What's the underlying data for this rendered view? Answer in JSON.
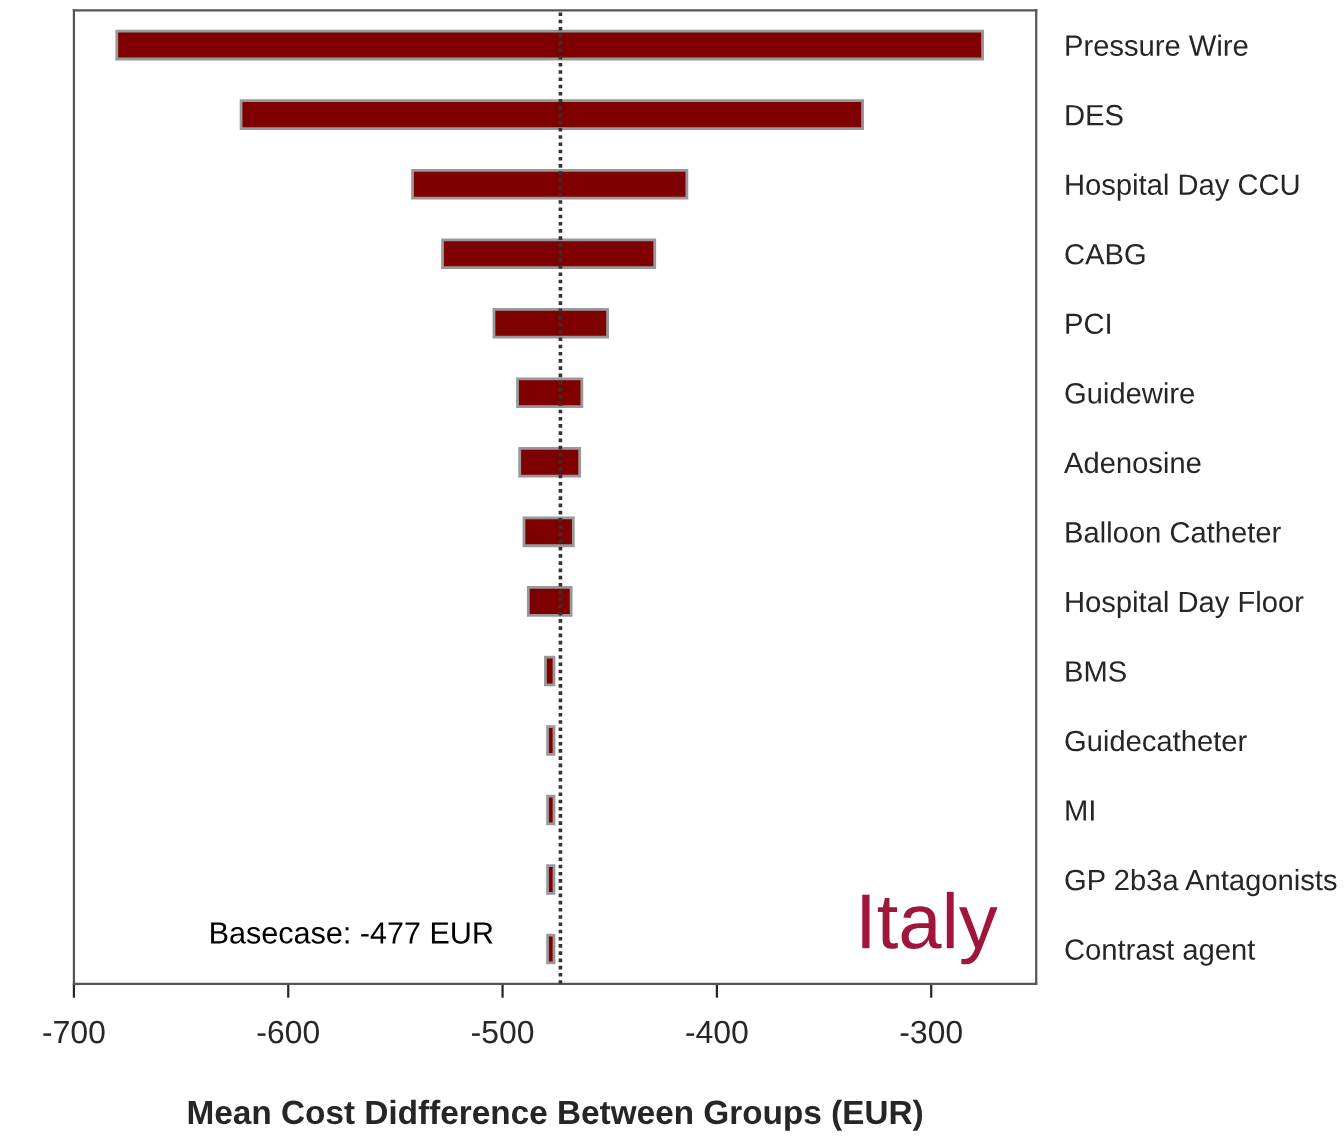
{
  "chart_data": {
    "type": "bar",
    "orientation": "horizontal",
    "xlabel": "Mean Cost Didfference Between Groups (EUR)",
    "categories": [
      "Pressure Wire",
      "DES",
      "Hospital Day CCU",
      "CABG",
      "PCI",
      "Guidewire",
      "Adenosine",
      "Balloon Catheter",
      "Hospital Day Floor",
      "BMS",
      "Guidecatheter",
      "MI",
      "GP 2b3a Antagonists",
      "Contrast agent"
    ],
    "base": [
      -680,
      -622,
      -542,
      -528,
      -504,
      -493,
      -492,
      -490,
      -488,
      -480,
      -479,
      -479,
      -479,
      -479
    ],
    "values": [
      404,
      290,
      128,
      99,
      53,
      30,
      28,
      23,
      20,
      4,
      3,
      3,
      3,
      3
    ],
    "color": "#7f0000",
    "xlim": [
      -700,
      -251
    ],
    "xticks": [
      -700,
      -600,
      -500,
      -400,
      -300
    ],
    "ref_lines": [
      {
        "axis": "x",
        "value": -473,
        "line_style": "dotted",
        "color": "#333333"
      }
    ],
    "annotations": [
      "Basecase: -477 EUR",
      "Italy"
    ],
    "grid": false,
    "legend": false
  }
}
